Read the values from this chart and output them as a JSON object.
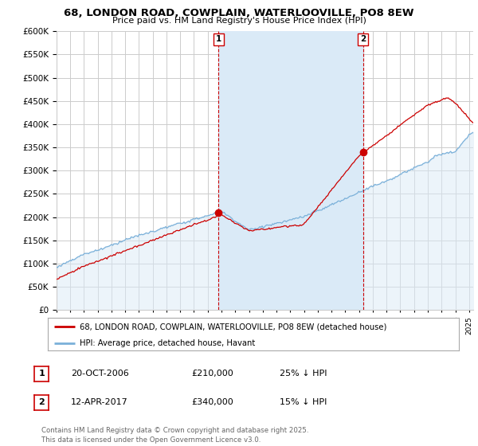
{
  "title": "68, LONDON ROAD, COWPLAIN, WATERLOOVILLE, PO8 8EW",
  "subtitle": "Price paid vs. HM Land Registry's House Price Index (HPI)",
  "background_color": "#ffffff",
  "grid_color": "#cccccc",
  "hpi_color": "#7ab0d9",
  "hpi_fill_color": "#daeaf7",
  "price_color": "#cc0000",
  "vline_color": "#cc0000",
  "ylim_min": 0,
  "ylim_max": 600000,
  "ytick_step": 50000,
  "legend_label_red": "68, LONDON ROAD, COWPLAIN, WATERLOOVILLE, PO8 8EW (detached house)",
  "legend_label_blue": "HPI: Average price, detached house, Havant",
  "annotation1_label": "1",
  "annotation1_date": "20-OCT-2006",
  "annotation1_price": "£210,000",
  "annotation1_pct": "25% ↓ HPI",
  "annotation2_label": "2",
  "annotation2_date": "12-APR-2017",
  "annotation2_price": "£340,000",
  "annotation2_pct": "15% ↓ HPI",
  "footer": "Contains HM Land Registry data © Crown copyright and database right 2025.\nThis data is licensed under the Open Government Licence v3.0.",
  "xstart_year": 1995,
  "xend_year": 2025,
  "sale1_year": 2006.79,
  "sale1_price": 210000,
  "sale2_year": 2017.29,
  "sale2_price": 340000
}
